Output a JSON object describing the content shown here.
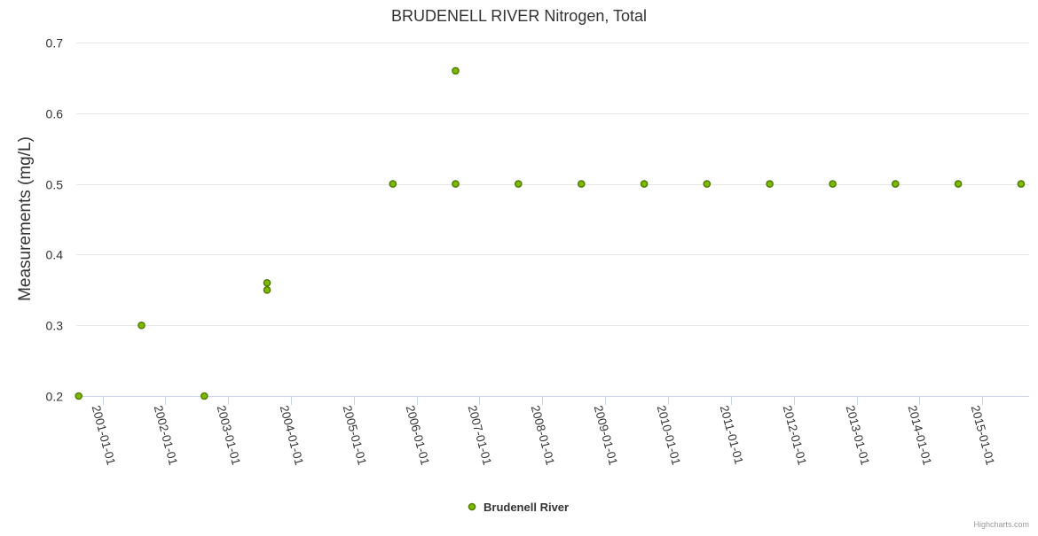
{
  "chart_data": {
    "type": "scatter",
    "title": "BRUDENELL RIVER Nitrogen, Total",
    "ylabel": "Measurements (mg/L)",
    "xlabel": "",
    "ylim": [
      0.2,
      0.7
    ],
    "yticks": [
      "0.2",
      "0.3",
      "0.4",
      "0.5",
      "0.6",
      "0.7"
    ],
    "xticks": [
      "2001-01-01",
      "2002-01-01",
      "2003-01-01",
      "2004-01-01",
      "2005-01-01",
      "2006-01-01",
      "2007-01-01",
      "2008-01-01",
      "2009-01-01",
      "2010-01-01",
      "2011-01-01",
      "2012-01-01",
      "2013-01-01",
      "2014-01-01",
      "2015-01-01"
    ],
    "xlim": [
      "2000-08-01",
      "2015-10-01"
    ],
    "grid": true,
    "legend_position": "bottom-center",
    "series": [
      {
        "name": "Brudenell River",
        "color": "#7cb900",
        "points": [
          {
            "date": "2000-08-15",
            "value": 0.2
          },
          {
            "date": "2001-08-15",
            "value": 0.3
          },
          {
            "date": "2002-08-15",
            "value": 0.2
          },
          {
            "date": "2003-08-15",
            "value": 0.36
          },
          {
            "date": "2003-08-15",
            "value": 0.35
          },
          {
            "date": "2005-08-15",
            "value": 0.5
          },
          {
            "date": "2006-08-15",
            "value": 0.66
          },
          {
            "date": "2006-08-15",
            "value": 0.5
          },
          {
            "date": "2007-08-15",
            "value": 0.5
          },
          {
            "date": "2008-08-15",
            "value": 0.5
          },
          {
            "date": "2009-08-15",
            "value": 0.5
          },
          {
            "date": "2010-08-15",
            "value": 0.5
          },
          {
            "date": "2011-08-15",
            "value": 0.5
          },
          {
            "date": "2012-08-15",
            "value": 0.5
          },
          {
            "date": "2013-08-15",
            "value": 0.5
          },
          {
            "date": "2014-08-15",
            "value": 0.5
          },
          {
            "date": "2015-08-15",
            "value": 0.5
          }
        ]
      }
    ],
    "credits": "Highcharts.com"
  }
}
